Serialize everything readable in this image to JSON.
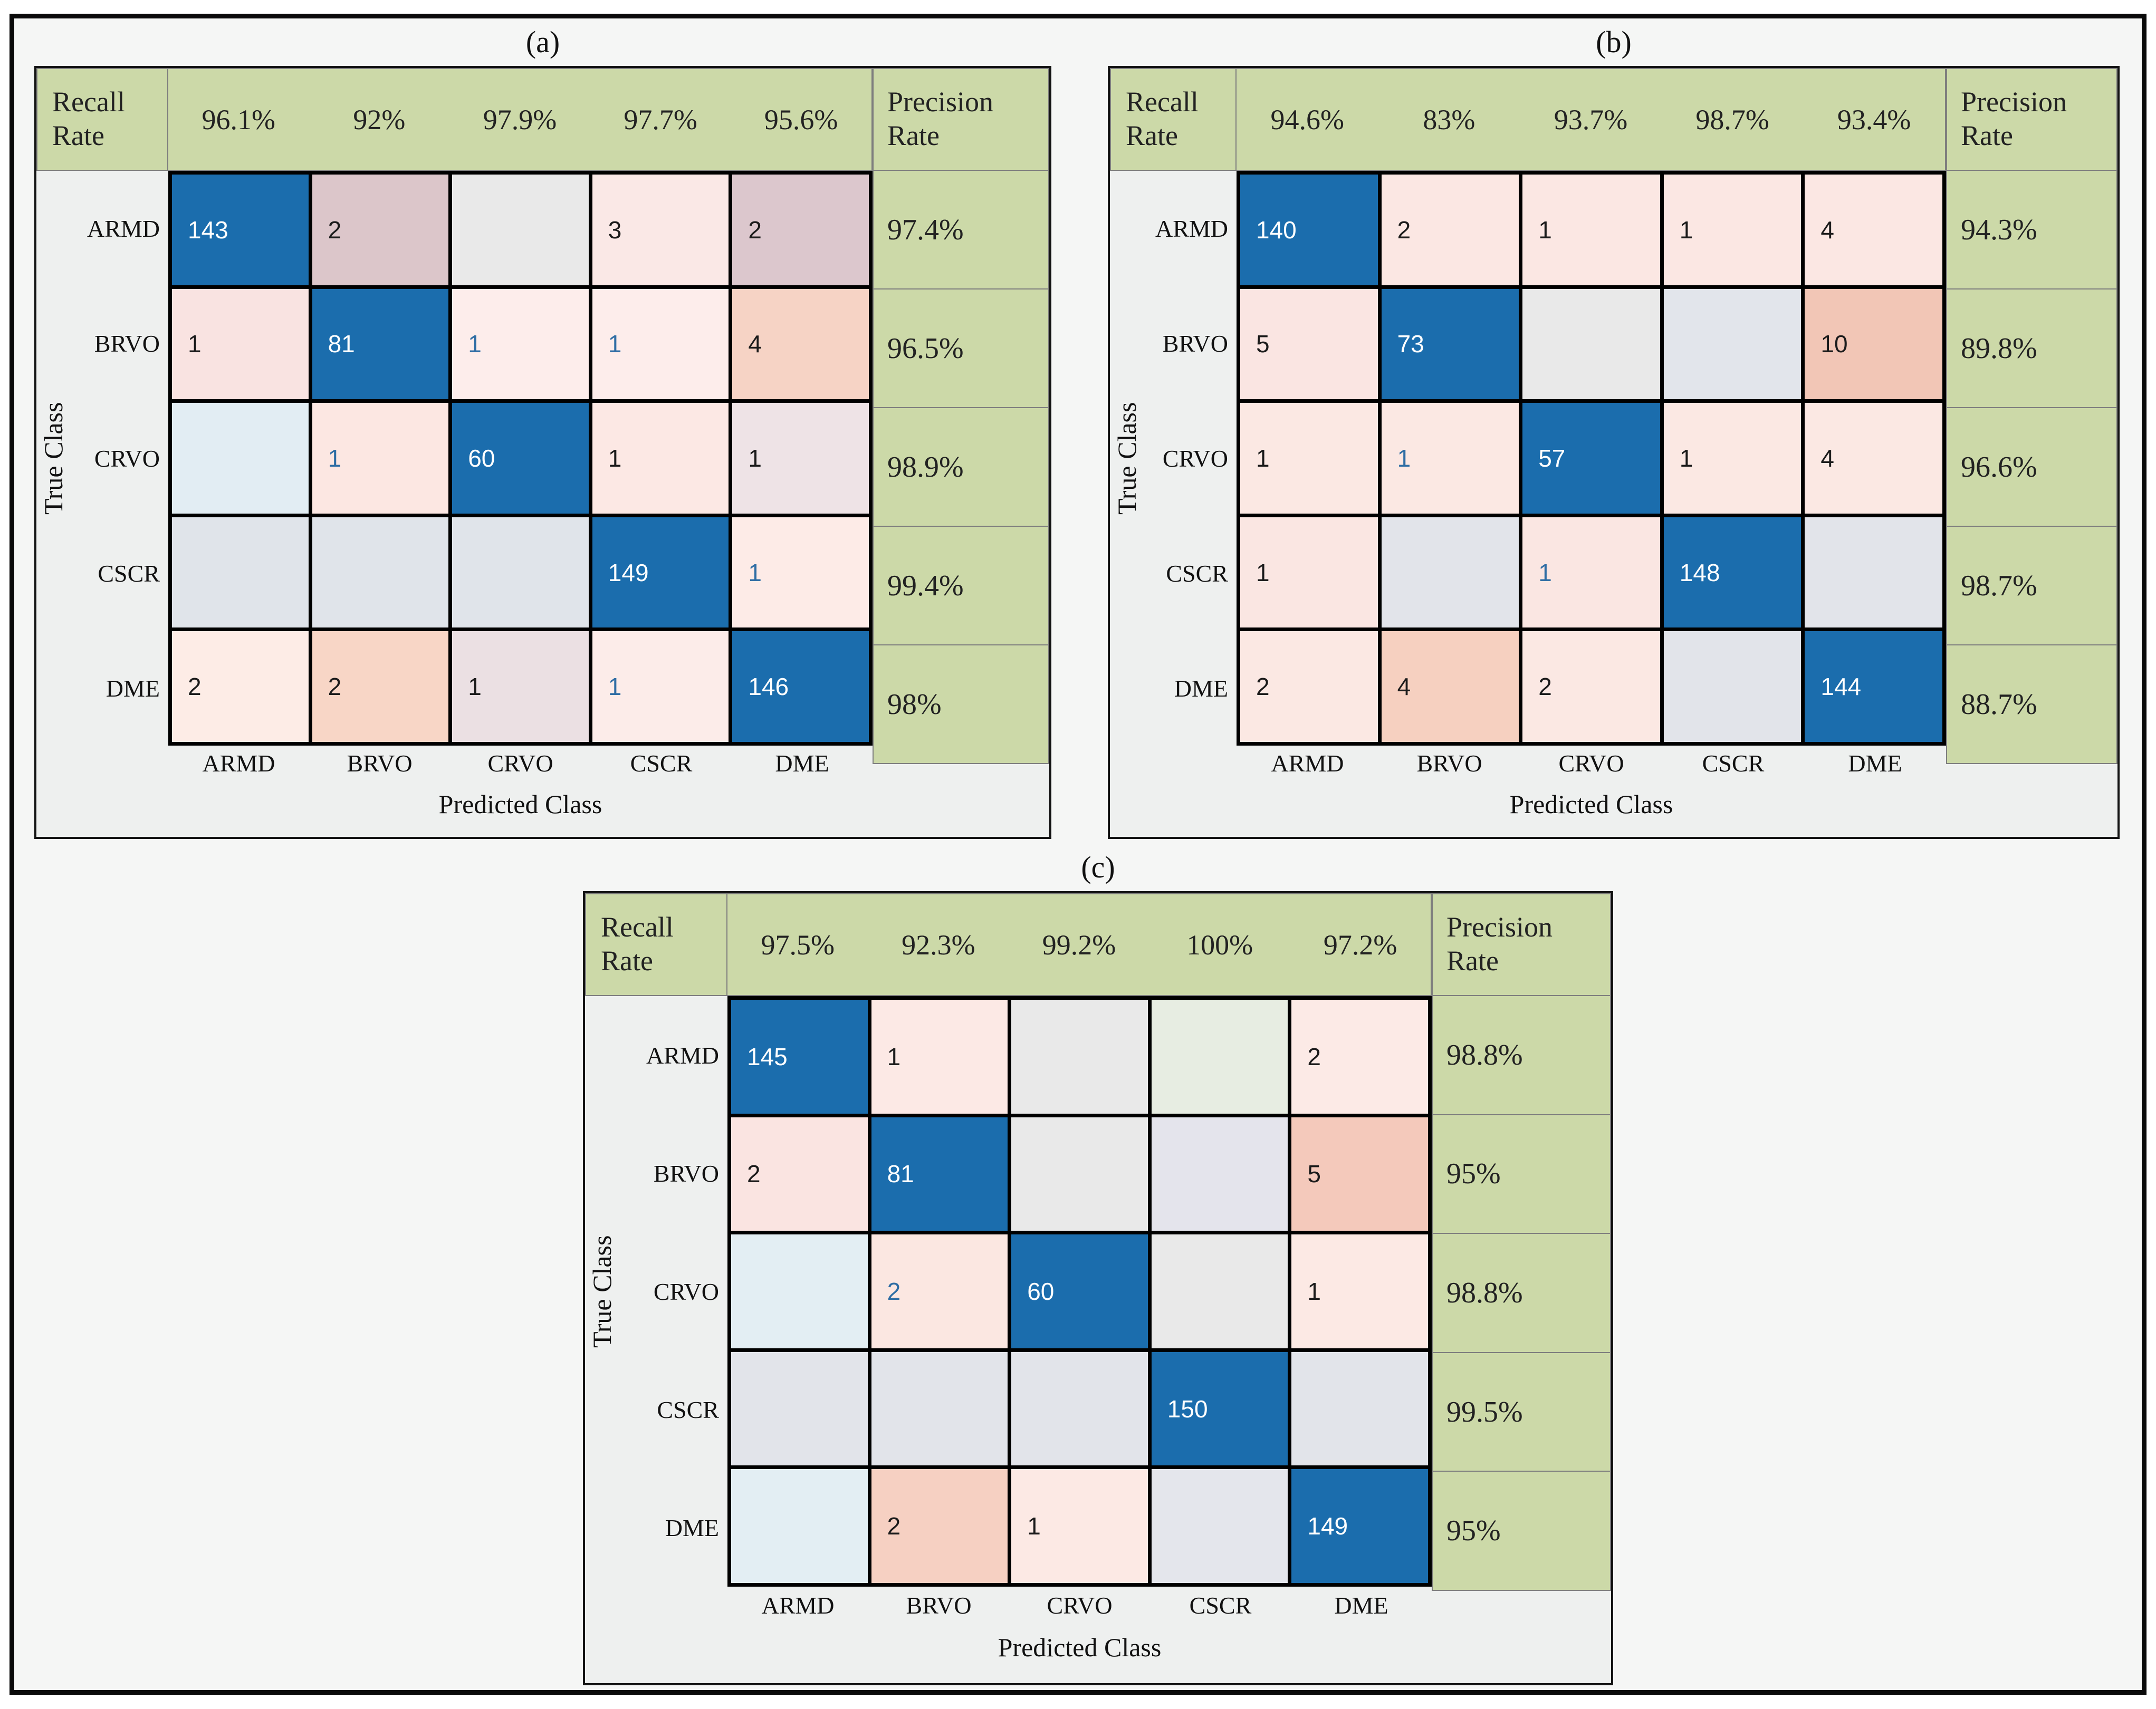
{
  "figure": {
    "outer_background": "#ffffff",
    "inner_background": "#f5f6f5",
    "border_color": "#0a0a0a"
  },
  "colors": {
    "header_green": "#ccd9a8",
    "green_border": "#7e7e7e",
    "panel_bg": "#eef0ef",
    "panel_border": "#141414",
    "grid_line": "#000000",
    "diagonal_blue": "#1b6dad",
    "blue_text": "#2e6da4",
    "black_text": "#1b1b1b",
    "white_text": "#ffffff"
  },
  "labels": {
    "recall": "Recall Rate",
    "precision": "Precision Rate",
    "true_class": "True Class",
    "predicted_class": "Predicted Class"
  },
  "classes": [
    "ARMD",
    "BRVO",
    "CRVO",
    "CSCR",
    "DME"
  ],
  "panels": [
    {
      "id": "a",
      "caption": "(a)",
      "recall": [
        "96.1%",
        "92%",
        "97.9%",
        "97.7%",
        "95.6%"
      ],
      "precision": [
        "97.4%",
        "96.5%",
        "98.9%",
        "99.4%",
        "98%"
      ],
      "grid": [
        [
          {
            "v": "143",
            "bg": "#1b6dad",
            "fg": "#ffffff"
          },
          {
            "v": "2",
            "bg": "#dcc6ca",
            "fg": "#1b1b1b"
          },
          {
            "v": "",
            "bg": "#e9e9e9",
            "fg": "#1b1b1b"
          },
          {
            "v": "3",
            "bg": "#fae8e6",
            "fg": "#1b1b1b"
          },
          {
            "v": "2",
            "bg": "#dcc7cd",
            "fg": "#1b1b1b"
          }
        ],
        [
          {
            "v": "1",
            "bg": "#f9e3e1",
            "fg": "#1b1b1b"
          },
          {
            "v": "81",
            "bg": "#1b6dad",
            "fg": "#ffffff"
          },
          {
            "v": "1",
            "bg": "#fdedeb",
            "fg": "#2e6da4"
          },
          {
            "v": "1",
            "bg": "#fdedeb",
            "fg": "#2e6da4"
          },
          {
            "v": "4",
            "bg": "#f6d3c5",
            "fg": "#1b1b1b"
          }
        ],
        [
          {
            "v": "",
            "bg": "#e2edf3",
            "fg": "#1b1b1b"
          },
          {
            "v": "1",
            "bg": "#fce7e2",
            "fg": "#2e6da4"
          },
          {
            "v": "60",
            "bg": "#1b6dad",
            "fg": "#ffffff"
          },
          {
            "v": "1",
            "bg": "#fce8e4",
            "fg": "#1b1b1b"
          },
          {
            "v": "1",
            "bg": "#eee3e6",
            "fg": "#1b1b1b"
          }
        ],
        [
          {
            "v": "",
            "bg": "#e0e4ea",
            "fg": "#1b1b1b"
          },
          {
            "v": "",
            "bg": "#e0e4ea",
            "fg": "#1b1b1b"
          },
          {
            "v": "",
            "bg": "#e0e4ea",
            "fg": "#1b1b1b"
          },
          {
            "v": "149",
            "bg": "#1b6dad",
            "fg": "#ffffff"
          },
          {
            "v": "1",
            "bg": "#fdebe7",
            "fg": "#2e6da4"
          }
        ],
        [
          {
            "v": "2",
            "bg": "#fdece6",
            "fg": "#1b1b1b"
          },
          {
            "v": "2",
            "bg": "#f8d6c6",
            "fg": "#1b1b1b"
          },
          {
            "v": "1",
            "bg": "#ebe0e3",
            "fg": "#1b1b1b"
          },
          {
            "v": "1",
            "bg": "#fcece9",
            "fg": "#2e6da4"
          },
          {
            "v": "146",
            "bg": "#1b6dad",
            "fg": "#ffffff"
          }
        ]
      ]
    },
    {
      "id": "b",
      "caption": "(b)",
      "recall": [
        "94.6%",
        "83%",
        "93.7%",
        "98.7%",
        "93.4%"
      ],
      "precision": [
        "94.3%",
        "89.8%",
        "96.6%",
        "98.7%",
        "88.7%"
      ],
      "grid": [
        [
          {
            "v": "140",
            "bg": "#1b6dad",
            "fg": "#ffffff"
          },
          {
            "v": "2",
            "bg": "#fbe7e3",
            "fg": "#1b1b1b"
          },
          {
            "v": "1",
            "bg": "#fbe7e3",
            "fg": "#1b1b1b"
          },
          {
            "v": "1",
            "bg": "#fbe7e3",
            "fg": "#1b1b1b"
          },
          {
            "v": "4",
            "bg": "#fbe7e3",
            "fg": "#1b1b1b"
          }
        ],
        [
          {
            "v": "5",
            "bg": "#fae5e2",
            "fg": "#1b1b1b"
          },
          {
            "v": "73",
            "bg": "#1b6dad",
            "fg": "#ffffff"
          },
          {
            "v": "",
            "bg": "#e9e9e9",
            "fg": "#1b1b1b"
          },
          {
            "v": "",
            "bg": "#e2e5eb",
            "fg": "#1b1b1b"
          },
          {
            "v": "10",
            "bg": "#f2c6b6",
            "fg": "#1b1b1b"
          }
        ],
        [
          {
            "v": "1",
            "bg": "#fbe8e3",
            "fg": "#1b1b1b"
          },
          {
            "v": "1",
            "bg": "#fbe8e3",
            "fg": "#2e6da4"
          },
          {
            "v": "57",
            "bg": "#1b6dad",
            "fg": "#ffffff"
          },
          {
            "v": "1",
            "bg": "#fbe8e3",
            "fg": "#1b1b1b"
          },
          {
            "v": "4",
            "bg": "#fbe8e3",
            "fg": "#1b1b1b"
          }
        ],
        [
          {
            "v": "1",
            "bg": "#fae6e2",
            "fg": "#1b1b1b"
          },
          {
            "v": "",
            "bg": "#e2e4ea",
            "fg": "#1b1b1b"
          },
          {
            "v": "1",
            "bg": "#fae6e2",
            "fg": "#2e6da4"
          },
          {
            "v": "148",
            "bg": "#1b6dad",
            "fg": "#ffffff"
          },
          {
            "v": "",
            "bg": "#e2e4ea",
            "fg": "#1b1b1b"
          }
        ],
        [
          {
            "v": "2",
            "bg": "#fbe8e3",
            "fg": "#1b1b1b"
          },
          {
            "v": "4",
            "bg": "#f6d0c0",
            "fg": "#1b1b1b"
          },
          {
            "v": "2",
            "bg": "#fbe8e3",
            "fg": "#1b1b1b"
          },
          {
            "v": "",
            "bg": "#e2e4ea",
            "fg": "#1b1b1b"
          },
          {
            "v": "144",
            "bg": "#1b6dad",
            "fg": "#ffffff"
          }
        ]
      ]
    },
    {
      "id": "c",
      "caption": "(c)",
      "recall": [
        "97.5%",
        "92.3%",
        "99.2%",
        "100%",
        "97.2%"
      ],
      "precision": [
        "98.8%",
        "95%",
        "98.8%",
        "99.5%",
        "95%"
      ],
      "grid": [
        [
          {
            "v": "145",
            "bg": "#1b6dad",
            "fg": "#ffffff"
          },
          {
            "v": "1",
            "bg": "#fce9e5",
            "fg": "#1b1b1b"
          },
          {
            "v": "",
            "bg": "#e9e9e9",
            "fg": "#1b1b1b"
          },
          {
            "v": "",
            "bg": "#e7ede2",
            "fg": "#1b1b1b"
          },
          {
            "v": "2",
            "bg": "#fceae6",
            "fg": "#1b1b1b"
          }
        ],
        [
          {
            "v": "2",
            "bg": "#fae4e1",
            "fg": "#1b1b1b"
          },
          {
            "v": "81",
            "bg": "#1b6dad",
            "fg": "#ffffff"
          },
          {
            "v": "",
            "bg": "#e9e9e9",
            "fg": "#1b1b1b"
          },
          {
            "v": "",
            "bg": "#e4e4ec",
            "fg": "#1b1b1b"
          },
          {
            "v": "5",
            "bg": "#f4c9bb",
            "fg": "#1b1b1b"
          }
        ],
        [
          {
            "v": "",
            "bg": "#e3eef3",
            "fg": "#1b1b1b"
          },
          {
            "v": "2",
            "bg": "#fbe7e1",
            "fg": "#2e6da4"
          },
          {
            "v": "60",
            "bg": "#1b6dad",
            "fg": "#ffffff"
          },
          {
            "v": "",
            "bg": "#e9e9e9",
            "fg": "#1b1b1b"
          },
          {
            "v": "1",
            "bg": "#fce9e4",
            "fg": "#1b1b1b"
          }
        ],
        [
          {
            "v": "",
            "bg": "#e2e4ea",
            "fg": "#1b1b1b"
          },
          {
            "v": "",
            "bg": "#e2e4ea",
            "fg": "#1b1b1b"
          },
          {
            "v": "",
            "bg": "#e2e4ea",
            "fg": "#1b1b1b"
          },
          {
            "v": "150",
            "bg": "#1b6dad",
            "fg": "#ffffff"
          },
          {
            "v": "",
            "bg": "#e2e4ea",
            "fg": "#1b1b1b"
          }
        ],
        [
          {
            "v": "",
            "bg": "#e3eef3",
            "fg": "#1b1b1b"
          },
          {
            "v": "2",
            "bg": "#f6d0c2",
            "fg": "#1b1b1b"
          },
          {
            "v": "1",
            "bg": "#fce9e4",
            "fg": "#1b1b1b"
          },
          {
            "v": "",
            "bg": "#e4e6ec",
            "fg": "#1b1b1b"
          },
          {
            "v": "149",
            "bg": "#1b6dad",
            "fg": "#ffffff"
          }
        ]
      ]
    }
  ],
  "chart_data": [
    {
      "type": "heatmap",
      "title": "(a)",
      "xlabel": "Predicted Class",
      "ylabel": "True Class",
      "categories": [
        "ARMD",
        "BRVO",
        "CRVO",
        "CSCR",
        "DME"
      ],
      "matrix": [
        [
          143,
          2,
          null,
          3,
          2
        ],
        [
          1,
          81,
          1,
          1,
          4
        ],
        [
          null,
          1,
          60,
          1,
          1
        ],
        [
          null,
          null,
          null,
          149,
          1
        ],
        [
          2,
          2,
          1,
          1,
          146
        ]
      ],
      "recall_pct": [
        96.1,
        92,
        97.9,
        97.7,
        95.6
      ],
      "precision_pct": [
        97.4,
        96.5,
        98.9,
        99.4,
        98
      ]
    },
    {
      "type": "heatmap",
      "title": "(b)",
      "xlabel": "Predicted Class",
      "ylabel": "True Class",
      "categories": [
        "ARMD",
        "BRVO",
        "CRVO",
        "CSCR",
        "DME"
      ],
      "matrix": [
        [
          140,
          2,
          1,
          1,
          4
        ],
        [
          5,
          73,
          null,
          null,
          10
        ],
        [
          1,
          1,
          57,
          1,
          4
        ],
        [
          1,
          null,
          1,
          148,
          null
        ],
        [
          2,
          4,
          2,
          null,
          144
        ]
      ],
      "recall_pct": [
        94.6,
        83,
        93.7,
        98.7,
        93.4
      ],
      "precision_pct": [
        94.3,
        89.8,
        96.6,
        98.7,
        88.7
      ]
    },
    {
      "type": "heatmap",
      "title": "(c)",
      "xlabel": "Predicted Class",
      "ylabel": "True Class",
      "categories": [
        "ARMD",
        "BRVO",
        "CRVO",
        "CSCR",
        "DME"
      ],
      "matrix": [
        [
          145,
          1,
          null,
          null,
          2
        ],
        [
          2,
          81,
          null,
          null,
          5
        ],
        [
          null,
          2,
          60,
          null,
          1
        ],
        [
          null,
          null,
          null,
          150,
          null
        ],
        [
          null,
          2,
          1,
          null,
          149
        ]
      ],
      "recall_pct": [
        97.5,
        92.3,
        99.2,
        100,
        97.2
      ],
      "precision_pct": [
        98.8,
        95,
        98.8,
        99.5,
        95
      ]
    }
  ]
}
